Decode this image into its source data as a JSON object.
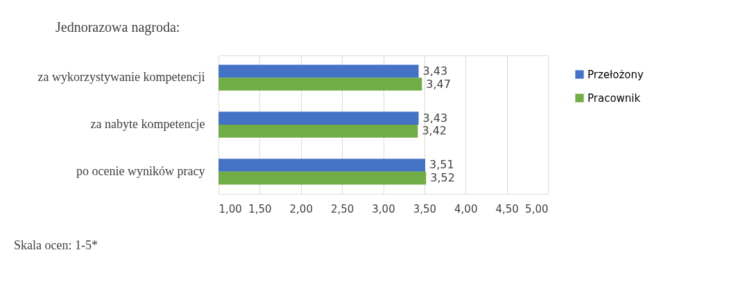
{
  "chart_data": {
    "type": "bar",
    "orientation": "horizontal",
    "title": "Jednorazowa nagroda:",
    "categories": [
      "za wykorzystywanie kompetencji",
      "za nabyte kompetencje",
      "po ocenie wyników pracy"
    ],
    "series": [
      {
        "name": "Przełożony",
        "color": "#4472c4",
        "values": [
          3.43,
          3.43,
          3.51
        ],
        "value_labels": [
          "3,43",
          "3,43",
          "3,51"
        ]
      },
      {
        "name": "Pracownik",
        "color": "#70ad47",
        "values": [
          3.47,
          3.42,
          3.52
        ],
        "value_labels": [
          "3,47",
          "3,42",
          "3,52"
        ]
      }
    ],
    "xlim": [
      1,
      5
    ],
    "xticks": [
      {
        "value": 1,
        "label": "1,00"
      },
      {
        "value": 1.5,
        "label": "1,50"
      },
      {
        "value": 2,
        "label": "2,00"
      },
      {
        "value": 2.5,
        "label": "2,50"
      },
      {
        "value": 3,
        "label": "3,00"
      },
      {
        "value": 3.5,
        "label": "3,50"
      },
      {
        "value": 4,
        "label": "4,00"
      },
      {
        "value": 4.5,
        "label": "4,50"
      },
      {
        "value": 5,
        "label": "5,00"
      }
    ],
    "grid": "x",
    "legend": "right",
    "annotations": [
      "Skala ocen: 1-5*"
    ]
  }
}
